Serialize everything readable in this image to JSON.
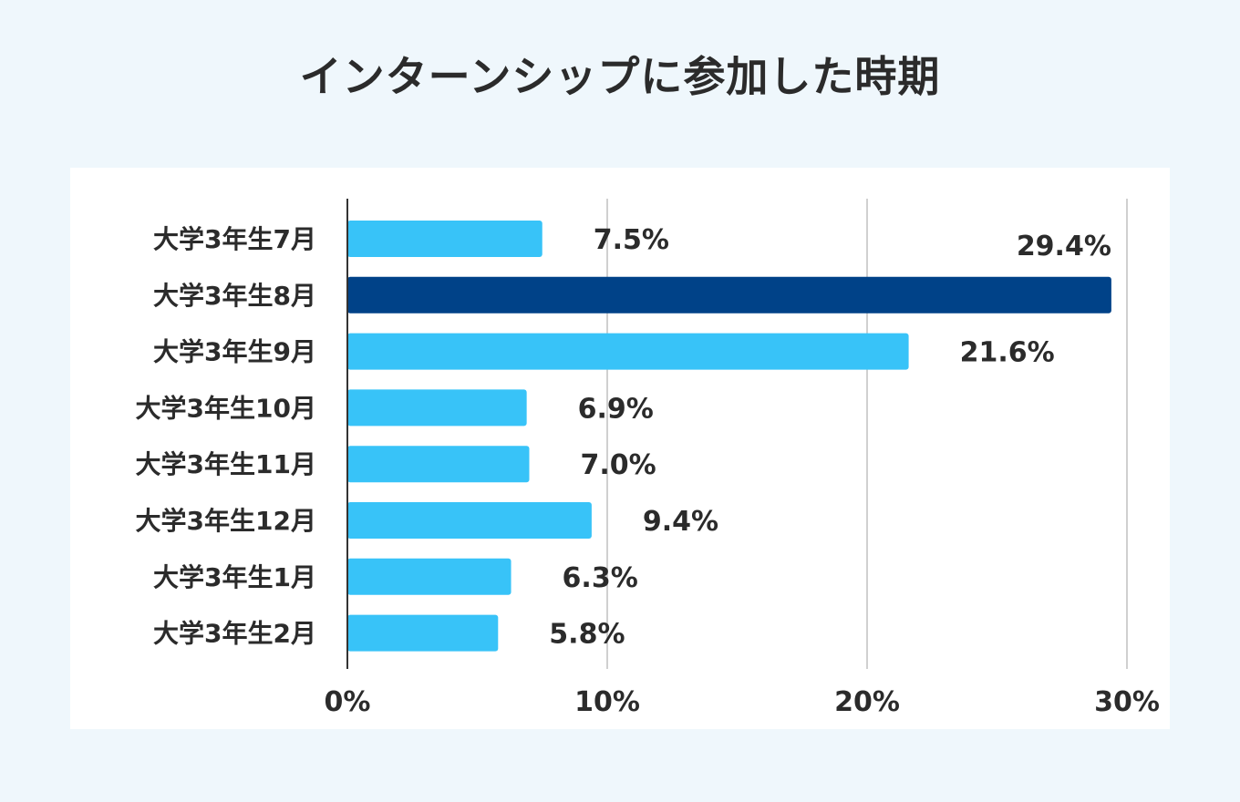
{
  "title": "インターンシップに参加した時期",
  "chart_data": {
    "type": "bar",
    "orientation": "horizontal",
    "title": "インターンシップに参加した時期",
    "categories": [
      "大学3年生7月",
      "大学3年生8月",
      "大学3年生9月",
      "大学3年生10月",
      "大学3年生11月",
      "大学3年生12月",
      "大学3年生1月",
      "大学3年生2月"
    ],
    "values": [
      7.5,
      29.4,
      21.6,
      6.9,
      7.0,
      9.4,
      6.3,
      5.8
    ],
    "value_labels": [
      "7.5%",
      "29.4%",
      "21.6%",
      "6.9%",
      "7.0%",
      "9.4%",
      "6.3%",
      "5.8%"
    ],
    "highlight_index": 1,
    "colors": {
      "bar": "#38c3f8",
      "highlight": "#004288",
      "grid": "#d0d0d0",
      "axis": "#333333",
      "text": "#2b2b2b"
    },
    "xlim": [
      0,
      30
    ],
    "x_ticks": [
      0,
      10,
      20,
      30
    ],
    "x_tick_labels": [
      "0%",
      "10%",
      "20%",
      "30%"
    ],
    "grid": true,
    "legend": "none"
  }
}
